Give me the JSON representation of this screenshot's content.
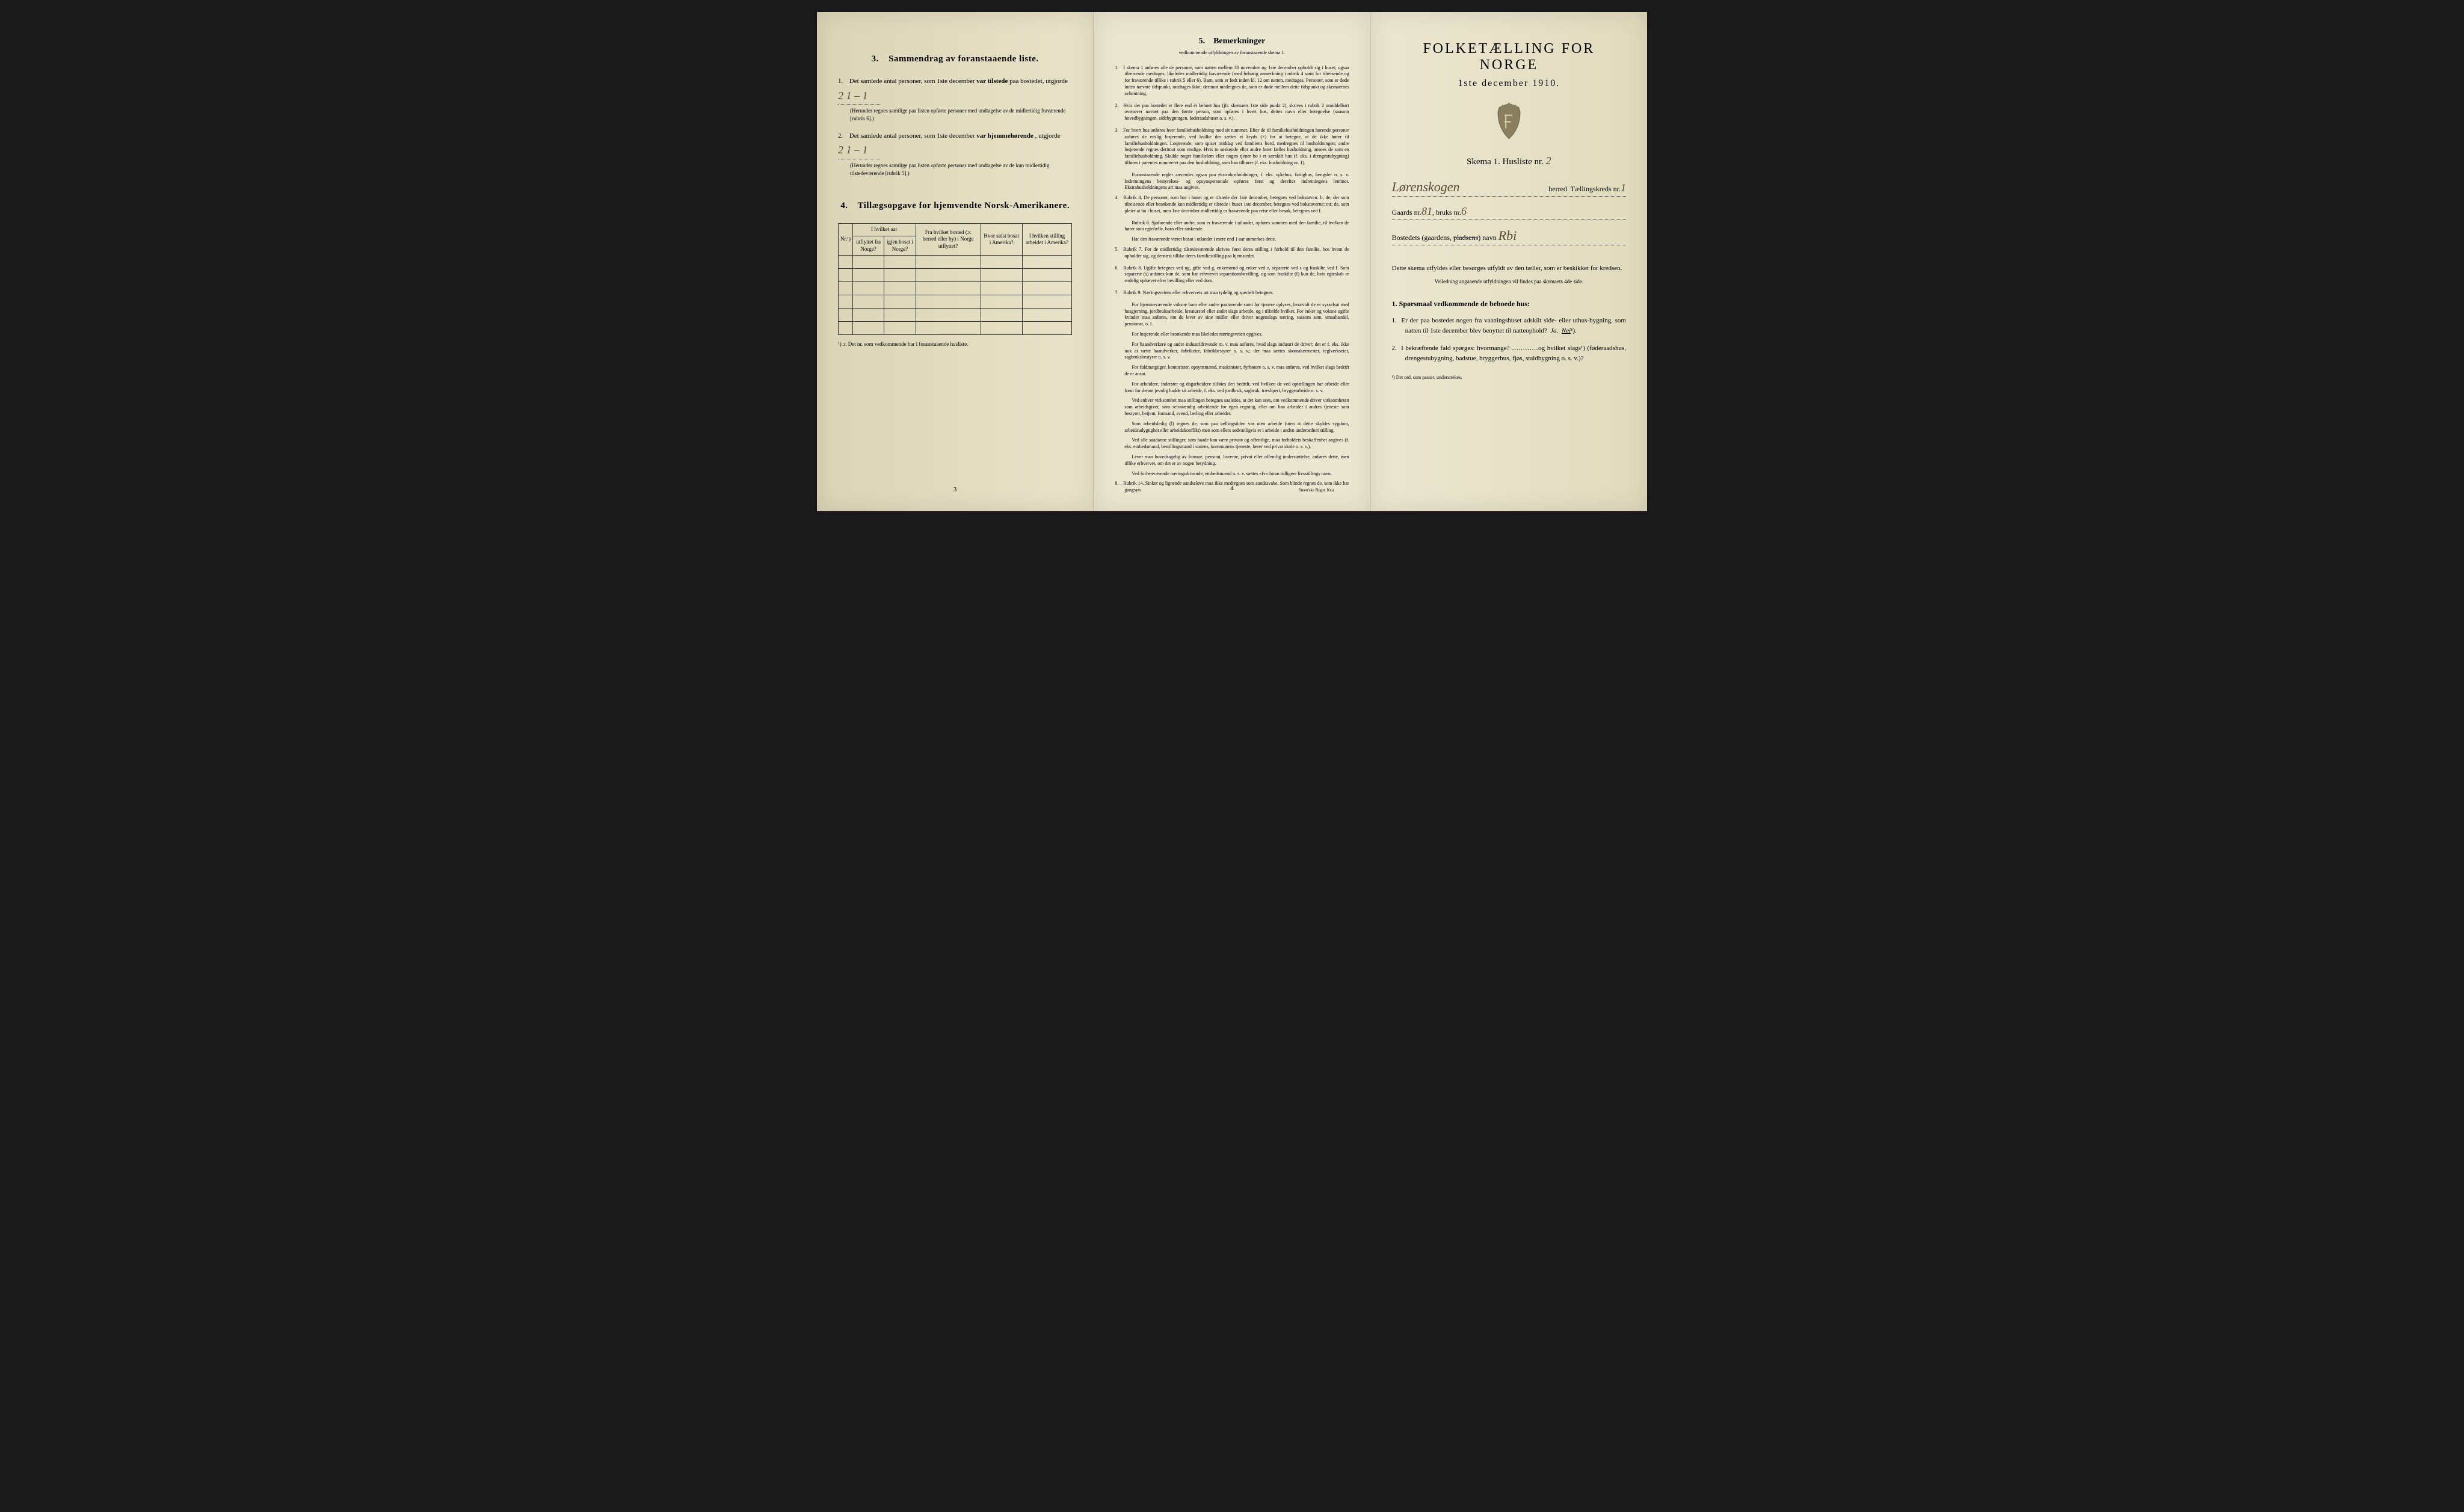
{
  "page1": {
    "section3": {
      "num": "3.",
      "title": "Sammendrag av foranstaaende liste.",
      "item1_pre": "Det samlede antal personer, som 1ste december",
      "item1_bold": "var tilstede",
      "item1_post": "paa bostedet, utgjorde",
      "item1_value": "2   1 – 1",
      "item1_note": "(Herunder regnes samtlige paa listen opførte personer med undtagelse av de midlertidig fraværende [rubrik 6].)",
      "item2_pre": "Det samlede antal personer, som 1ste december",
      "item2_bold": "var hjemmehørende",
      "item2_post": ", utgjorde",
      "item2_value": "2   1 – 1",
      "item2_note": "(Herunder regnes samtlige paa listen opførte personer med undtagelse av de kun midlertidig tilstedeværende [rubrik 5].)"
    },
    "section4": {
      "num": "4.",
      "title": "Tillægsopgave for hjemvendte Norsk-Amerikanere.",
      "headers": {
        "nr": "Nr.¹)",
        "col1a": "I hvilket aar",
        "col1b": "utflyttet fra Norge?",
        "col1c": "igjen bosat i Norge?",
        "col2": "Fra hvilket bosted (ɔ: herred eller by) i Norge utflyttet?",
        "col3": "Hvor sidst bosat i Amerika?",
        "col4": "I hvilken stilling arbeidet i Amerika?"
      },
      "blank_rows": 6,
      "footnote": "¹) ɔ: Det nr. som vedkommende har i foranstaaende husliste."
    },
    "page_num": "3"
  },
  "page2": {
    "num": "5.",
    "title": "Bemerkninger",
    "subtitle": "vedkommende utfyldningen av foranstaaende skema 1.",
    "items": [
      {
        "n": "1.",
        "text": "I skema 1 anføres alle de personer, som natten mellem 30 november og 1ste december opholdt sig i huset; ogsaa tilreisende medtages; likeledes midlertidig fraværende (med behørig anmerkning i rubrik 4 samt for tilreisende og for fraværende tillike i rubrik 5 eller 6). Barn, som er født inden kl. 12 om natten, medtages. Personer, som er døde inden nævnte tidspunkt, medtages ikke; derimot medregnes de, som er døde mellem dette tidspunkt og skemaernes avhentning."
      },
      {
        "n": "2.",
        "text": "Hvis der paa bostedet er flere end ét beboet hus (jfr. skemaets 1ste side punkt 2), skrives i rubrik 2 umiddelbart ovenover navnet paa den første person, som opføres i hvert hus, dettes navn eller betegnelse (saasom hovedbygningen, sidebygningen, føderaadshuset o. s. v.)."
      },
      {
        "n": "3.",
        "text": "For hvert hus anføres hver familiehusholdning med sit nummer. Efter de til familiehusholdningen hørende personer anføres de enslig losjerende, ved hvilke der sættes et kryds (×) for at betegne, at de ikke hører til familiehusholdningen. Losjerende, som spiser middag ved familiens bord, medregnes til husholdningen; andre losjerende regnes derimot som enslige. Hvis to søskende eller andre fører fælles husholdning, ansees de som en familiehusholdning. Skulde noget familielem eller nogen tjener bo i et særskilt hus (f. eks. i drengestubygning) tilføies i parentes nummeret paa den husholdning, som han tilhører (f. eks. husholdning nr. 1).",
        "sub": [
          "Foranstaaende regler anvendes ogsaa paa ekstrahusholdninger, f. eks. sykehus, fattighus, fængsler o. s. v. Indretningens bestyrelses- og opsynspersonale opføres først og derefter indretningens lemmer. Ekstrahusholdningens art maa angives."
        ]
      },
      {
        "n": "4.",
        "text": "Rubrik 4. De personer, som bor i huset og er tilstede der 1ste december, betegnes ved bokstaven: b; de, der som tilreisende eller besøkende kun midlertidig er tilstede i huset 1ste december, betegnes ved bokstaverne: mt; de, som pleier at bo i huset, men 1ste december midlertidig er fraværende paa reise eller besøk, betegnes ved f.",
        "sub": [
          "Rubrik 6. Sjøfarende eller andre, som er fraværende i utlandet, opføres sammen med den familie, til hvilken de hører som egtefælle, barn eller søskende.",
          "Har den fraværende været bosat i utlandet i mere end 1 aar anmerkes dette."
        ]
      },
      {
        "n": "5.",
        "text": "Rubrik 7. For de midlertidig tilstedeværende skrives først deres stilling i forhold til den familie, hos hvem de opholder sig, og dernæst tillike deres familiestilling paa hjemstedet."
      },
      {
        "n": "6.",
        "text": "Rubrik 8. Ugifte betegnes ved ug, gifte ved g, enkemænd og enker ved e, separerte ved s og fraskilte ved f. Som separerte (s) anføres kun de, som har erhvervet separationsbevilling, og som fraskilte (f) kun de, hvis egteskab er endelig ophævet efter bevilling eller ved dom."
      },
      {
        "n": "7.",
        "text": "Rubrik 9. Næringsveiens eller erhvervets art maa tydelig og specielt betegnes.",
        "sub": [
          "For hjemmeværende voksne barn eller andre paarørende samt for tjenere oplyses, hvorvidt de er sysselsat med husgjerning, jordbruksarbeide, kreaturstel eller andet slags arbeide, og i tilfælde hvilket. For enker og voksne ugifte kvinder maa anføres, om de lever av sine midler eller driver nogenslags næring, saasom søm, smaahandel, pensionat, o. l.",
          "For losjerende eller besøkende maa likeledes næringsveien opgives.",
          "For haandverkere og andre industridrivende m. v. maa anføres, hvad slags industri de driver; det er f. eks. ikke nok at sætte haandverker, fabrikeier, fabrikbestyrer o. s. v.; der maa sættes skomakermester, teglverkseier, sagbruksbestyrer o. s. v.",
          "For fuldmægtiger, kontorister, opsynsmænd, maskinister, fyrbøtere o. s. v. maa anføres, ved hvilket slags bedrift de er ansat.",
          "For arbeidere, inderster og dagarbeidere tilføies den bedrift, ved hvilken de ved optællingen har arbeide eller forut for denne jevnlig hadde sit arbeide, f. eks. ved jordbruk, sagbruk, træsliperi, bryggearbeide o. s. v.",
          "Ved enhver virksomhet maa stillingen betegnes saaledes, at det kan sees, om vedkommende driver virksomheten som arbeidsgiver, som selvstændig arbeidende for egen regning, eller om han arbeider i andres tjeneste som bestyrer, betjent, formand, svend, lærling eller arbeider.",
          "Som arbeidsledig (l) regnes de, som paa tællingstiden var uten arbeide (uten at dette skyldes sygdom, arbeidsudygtighet eller arbeidskonflikt) men som ellers sedvanligvis er i arbeide i anden underordnet stilling.",
          "Ved alle saadanne stillinger, som baade kan være private og offentlige, maa forholdets beskaffenhet angives (f. eks. embedsmand, bestillingsmand i statens, kommunens tjeneste, lærer ved privat skole o. s. v.).",
          "Lever man hovedsagelig av formue, pension, livrente, privat eller offentlig understøttelse, anføres dette, men tillike erhvervet, om det er av nogen betydning.",
          "Ved forhenværende næringsdrivende, embedsmænd o. s. v. sættes «fv» foran tidligere livsstillings navn."
        ]
      },
      {
        "n": "8.",
        "text": "Rubrik 14. Sinker og lignende aandssløve maa ikke medregnes som aandssvake. Som blinde regnes de, som ikke har gangsyn."
      }
    ],
    "page_num": "4",
    "imprint": "Steen'ske Bogtr.   Kr.a"
  },
  "page3": {
    "title": "FOLKETÆLLING FOR NORGE",
    "date": "1ste december 1910.",
    "skema_label": "Skema 1.   Husliste nr.",
    "skema_value": "2",
    "herred_value": "Lørenskogen",
    "herred_label": "herred.   Tællingskreds nr.",
    "kreds_value": "1",
    "gaards_label": "Gaards nr.",
    "gaards_value": "81",
    "bruks_label": ", bruks nr.",
    "bruks_value": "6",
    "bosted_label": "Bostedets (gaardens,",
    "bosted_struck": "pladsens",
    "bosted_label2": ") navn",
    "bosted_value": "Rbi",
    "instruct": "Dette skema utfyldes eller besørges utfyldt av den tæller, som er beskikket for kredsen.",
    "instruct_sub": "Veiledning angaaende utfyldningen vil findes paa skemaets 4de side.",
    "q_head_num": "1.",
    "q_head": "Spørsmaal vedkommende de beboede hus:",
    "q1": "Er der paa bostedet nogen fra vaaningshuset adskilt side- eller uthus-bygning, som natten til 1ste december blev benyttet til natteophold?",
    "q1_ja": "Ja.",
    "q1_nei": "Nei",
    "q1_sup": "¹).",
    "q2": "I bekræftende fald spørges: hvormange? …………og hvilket slags¹) (føderaadshus, drengestubygning, badstue, bryggerhus, fjøs, staldbygning o. s. v.)?",
    "foot": "¹) Det ord, som passer, understrekes."
  },
  "colors": {
    "paper": "#e8e2c8",
    "ink": "#2a2a2a",
    "handwriting": "#5a4a35"
  }
}
